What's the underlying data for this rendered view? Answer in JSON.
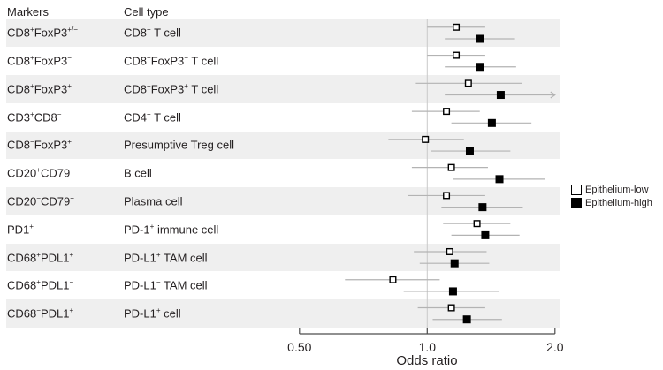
{
  "figure": {
    "table": {
      "headers": [
        "Markers",
        "Cell type"
      ]
    },
    "legend": {
      "items": [
        {
          "label": "Epithelium-low",
          "marker": "open-square"
        },
        {
          "label": "Epithelium-high",
          "marker": "filled-square"
        }
      ]
    },
    "colors": {
      "band": "#efefef",
      "ci_line": "#b3b3b3",
      "grid_line": "#c9c9c9",
      "axis": "#4d4d4d",
      "marker_low_fill": "#ffffff",
      "marker_high_fill": "#000000",
      "marker_stroke": "#000000",
      "text": "#231f20"
    }
  },
  "chart_data": {
    "type": "forest",
    "xlabel": "Odds ratio",
    "x_scale": "log2",
    "x_ticks": [
      "0.50",
      "1.0",
      "2.0"
    ],
    "x_tick_values": [
      0.5,
      1.0,
      2.0
    ],
    "xlim": [
      0.5,
      2.0
    ],
    "reference_line": 1.0,
    "legend": [
      "Epithelium-low",
      "Epithelium-high"
    ],
    "rows": [
      {
        "marker": "CD8^+^FoxP3^+/−^",
        "cell_type": "CD8^+^ T cell",
        "low": {
          "or": 1.17,
          "ci": [
            1.0,
            1.37
          ]
        },
        "high": {
          "or": 1.33,
          "ci": [
            1.1,
            1.61
          ]
        }
      },
      {
        "marker": "CD8^+^FoxP3^−^",
        "cell_type": "CD8^+^FoxP3^−^ T cell",
        "low": {
          "or": 1.17,
          "ci": [
            1.0,
            1.37
          ]
        },
        "high": {
          "or": 1.33,
          "ci": [
            1.1,
            1.62
          ]
        }
      },
      {
        "marker": "CD8^+^FoxP3^+^",
        "cell_type": "CD8^+^FoxP3^+^ T cell",
        "low": {
          "or": 1.25,
          "ci": [
            0.94,
            1.67
          ]
        },
        "high": {
          "or": 1.49,
          "ci": [
            1.1,
            2.0
          ],
          "arrow_high": true
        }
      },
      {
        "marker": "CD3^+^CD8^−^",
        "cell_type": "CD4^+^ T cell",
        "low": {
          "or": 1.11,
          "ci": [
            0.92,
            1.33
          ]
        },
        "high": {
          "or": 1.42,
          "ci": [
            1.14,
            1.76
          ]
        }
      },
      {
        "marker": "CD8^−^FoxP3^+^",
        "cell_type": "Presumptive Treg cell",
        "low": {
          "or": 0.99,
          "ci": [
            0.81,
            1.22
          ]
        },
        "high": {
          "or": 1.26,
          "ci": [
            1.02,
            1.57
          ]
        }
      },
      {
        "marker": "CD20^+^CD79^+^",
        "cell_type": "B cell",
        "low": {
          "or": 1.14,
          "ci": [
            0.92,
            1.39
          ]
        },
        "high": {
          "or": 1.48,
          "ci": [
            1.15,
            1.89
          ]
        }
      },
      {
        "marker": "CD20^−^CD79^+^",
        "cell_type": "Plasma cell",
        "low": {
          "or": 1.11,
          "ci": [
            0.9,
            1.37
          ]
        },
        "high": {
          "or": 1.35,
          "ci": [
            1.08,
            1.68
          ]
        }
      },
      {
        "marker": "PD1^+^",
        "cell_type": "PD-1^+^ immune cell",
        "low": {
          "or": 1.31,
          "ci": [
            1.09,
            1.57
          ]
        },
        "high": {
          "or": 1.37,
          "ci": [
            1.14,
            1.65
          ]
        }
      },
      {
        "marker": "CD68^+^PDL1^+^",
        "cell_type": "PD-L1^+^ TAM cell",
        "low": {
          "or": 1.13,
          "ci": [
            0.93,
            1.38
          ]
        },
        "high": {
          "or": 1.16,
          "ci": [
            0.96,
            1.4
          ]
        }
      },
      {
        "marker": "CD68^+^PDL1^−^",
        "cell_type": "PD-L1^−^ TAM cell",
        "low": {
          "or": 0.83,
          "ci": [
            0.64,
            1.07
          ]
        },
        "high": {
          "or": 1.15,
          "ci": [
            0.88,
            1.48
          ]
        }
      },
      {
        "marker": "CD68^−^PDL1^+^",
        "cell_type": "PD-L1^+^ cell",
        "low": {
          "or": 1.14,
          "ci": [
            0.95,
            1.37
          ]
        },
        "high": {
          "or": 1.24,
          "ci": [
            1.03,
            1.5
          ]
        }
      }
    ]
  }
}
